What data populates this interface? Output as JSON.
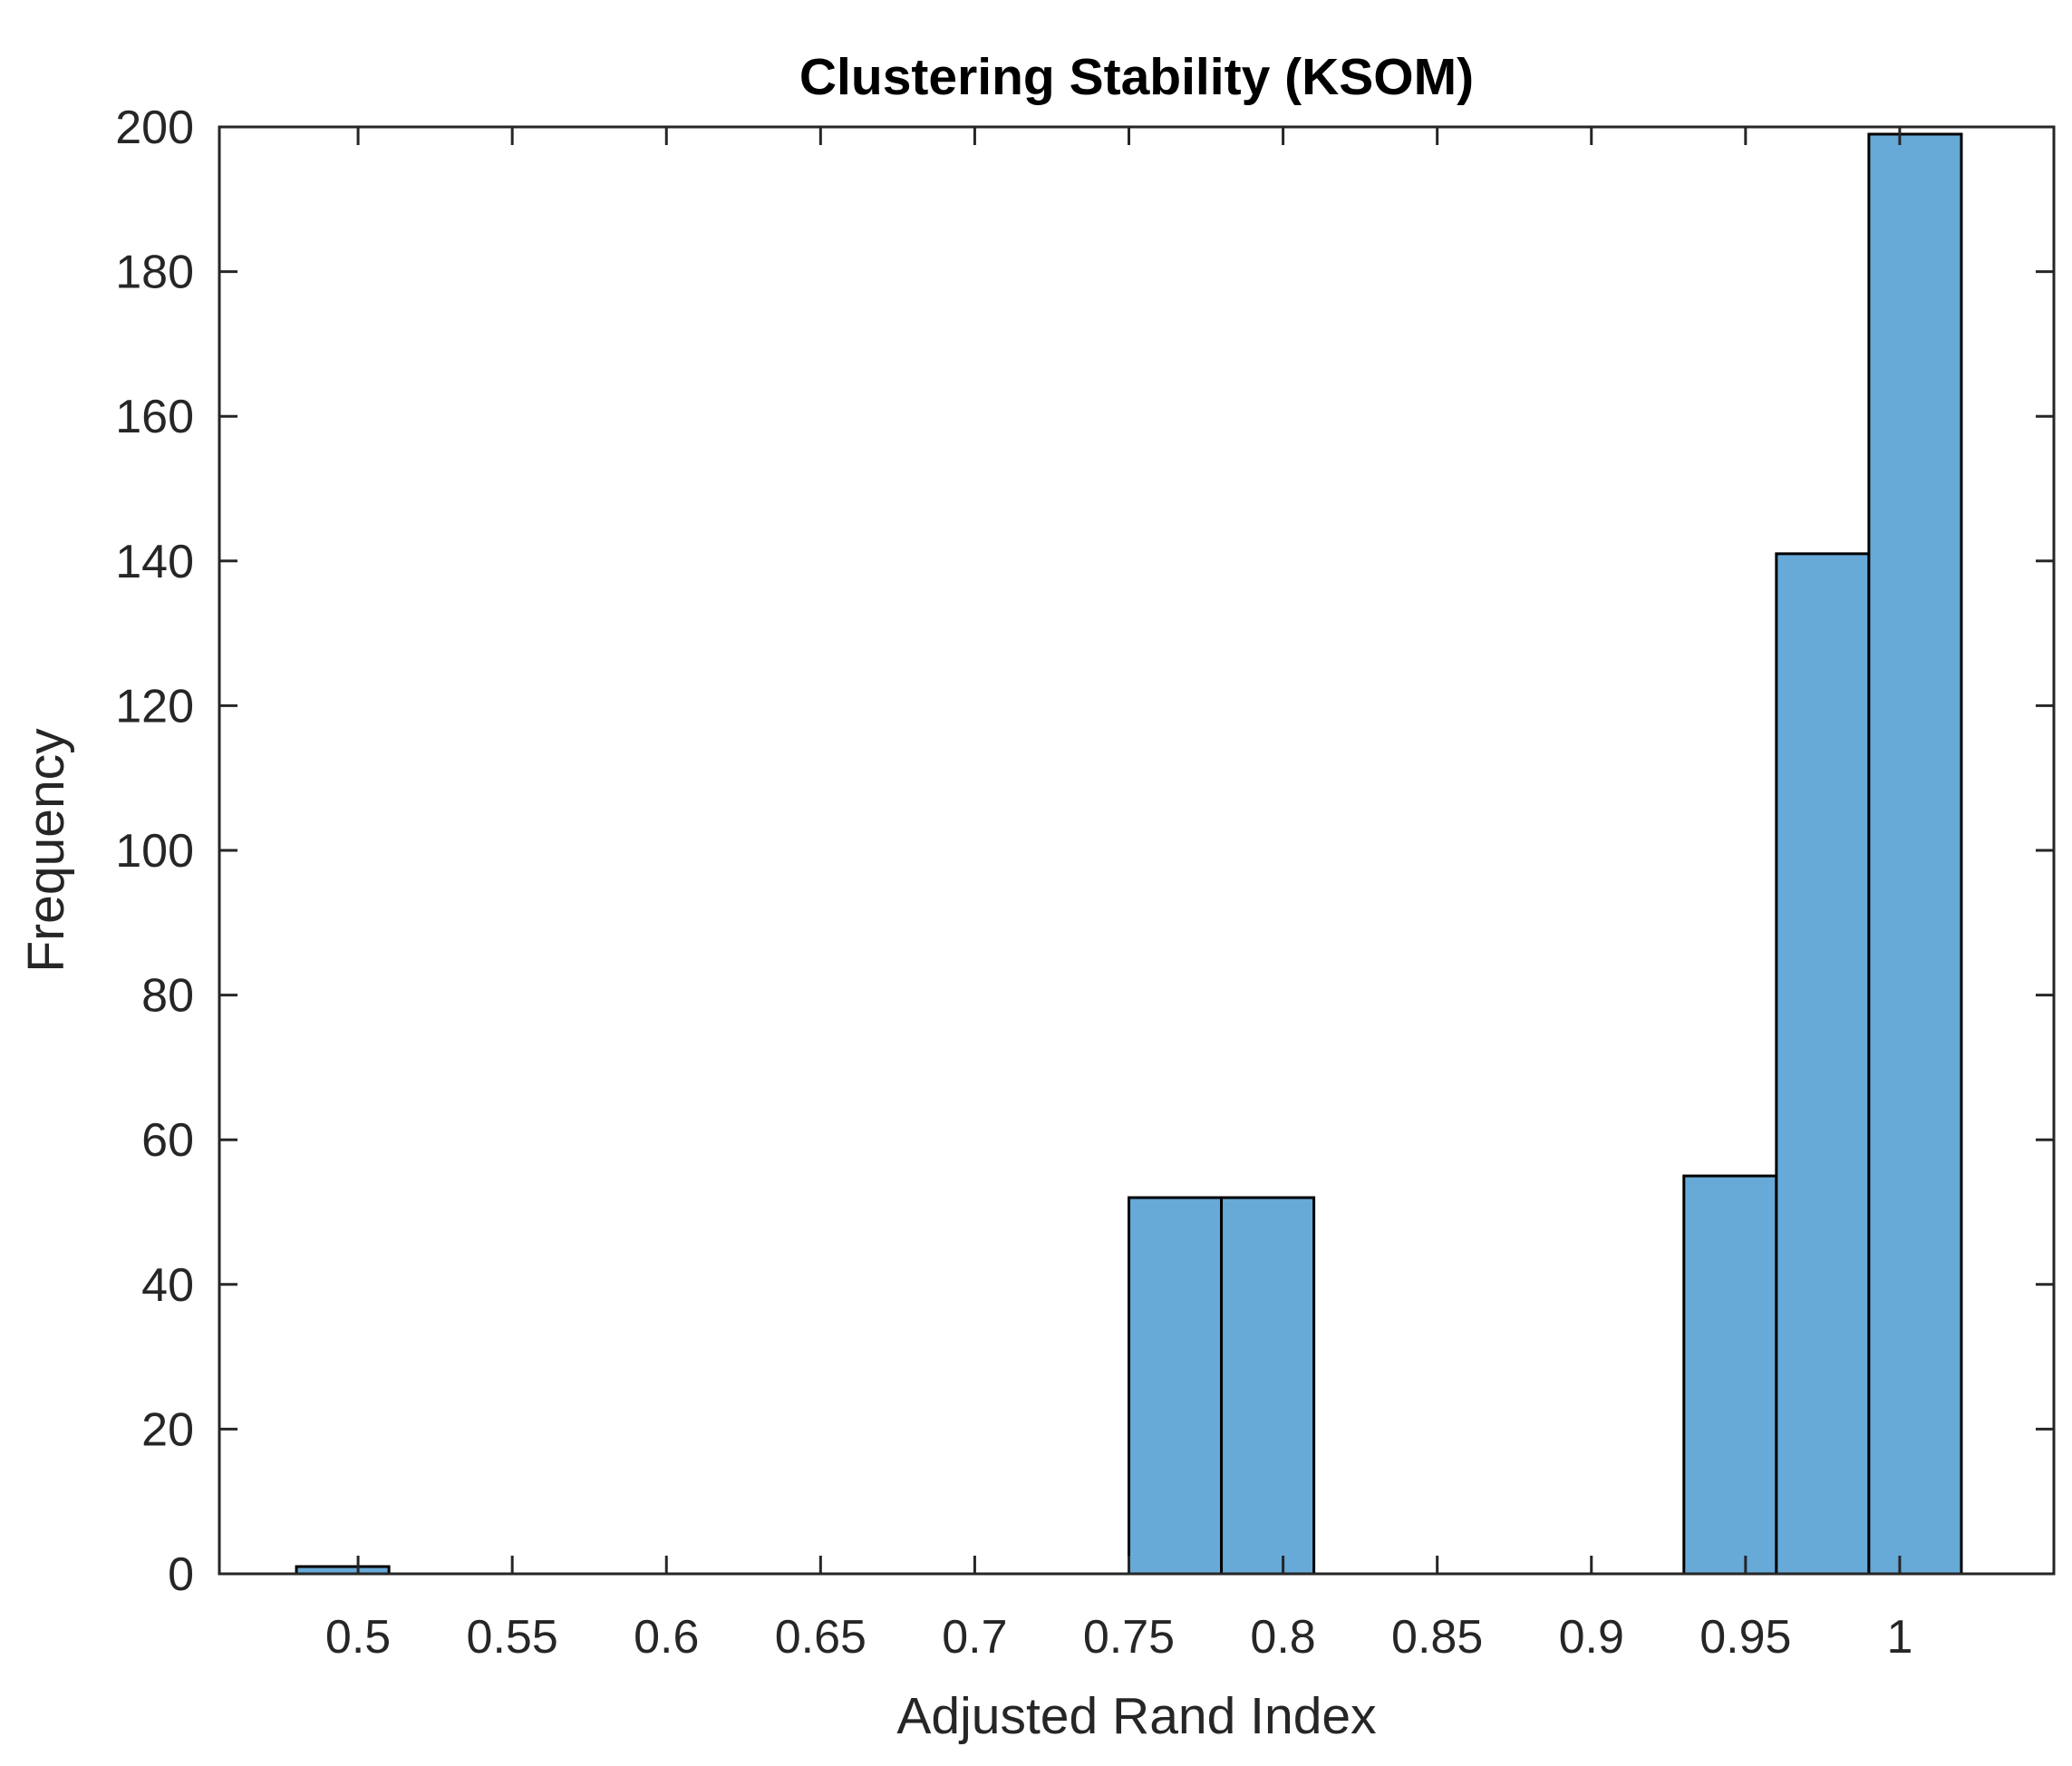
{
  "chart_data": {
    "type": "bar",
    "title": "Clustering Stability (KSOM)",
    "xlabel": "Adjusted Rand Index",
    "ylabel": "Frequency",
    "xlim": [
      0.455,
      1.05
    ],
    "ylim": [
      0,
      200
    ],
    "bin_width": 0.03,
    "bins": [
      {
        "x0": 0.48,
        "x1": 0.51,
        "value": 1
      },
      {
        "x0": 0.75,
        "x1": 0.78,
        "value": 52
      },
      {
        "x0": 0.78,
        "x1": 0.81,
        "value": 52
      },
      {
        "x0": 0.93,
        "x1": 0.96,
        "value": 55
      },
      {
        "x0": 0.96,
        "x1": 0.99,
        "value": 141
      },
      {
        "x0": 0.99,
        "x1": 1.02,
        "value": 199
      }
    ],
    "xticks": [
      0.5,
      0.55,
      0.6,
      0.65,
      0.7,
      0.75,
      0.8,
      0.85,
      0.9,
      0.95,
      1
    ],
    "xtick_labels": [
      "0.5",
      "0.55",
      "0.6",
      "0.65",
      "0.7",
      "0.75",
      "0.8",
      "0.85",
      "0.9",
      "0.95",
      "1"
    ],
    "yticks": [
      0,
      20,
      40,
      60,
      80,
      100,
      120,
      140,
      160,
      180,
      200
    ],
    "ytick_labels": [
      "0",
      "20",
      "40",
      "60",
      "80",
      "100",
      "120",
      "140",
      "160",
      "180",
      "200"
    ],
    "grid": false,
    "bar_color": "#67A9D7",
    "edge_color": "#000000"
  }
}
